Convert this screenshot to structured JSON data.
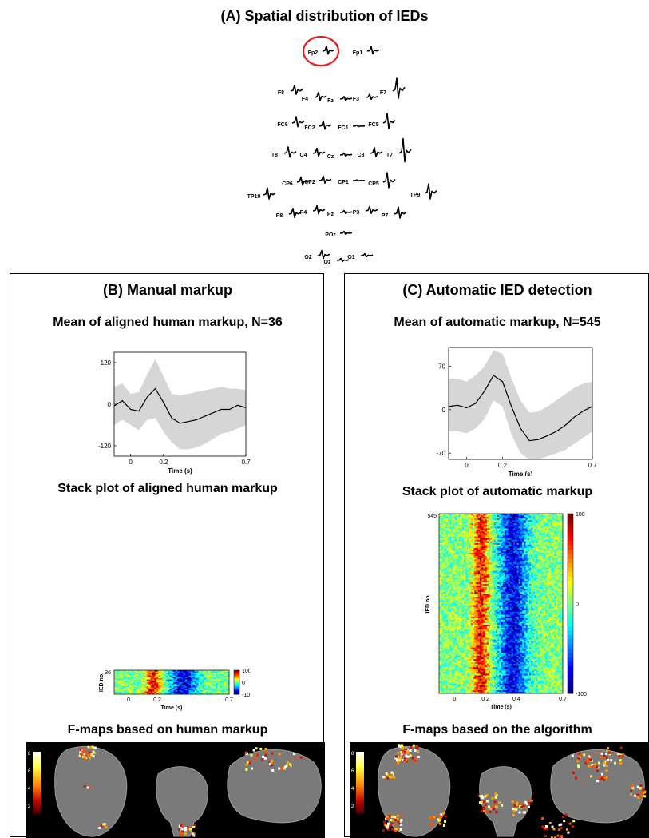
{
  "panel_a": {
    "title": "(A) Spatial distribution of IEDs",
    "channels": [
      {
        "label": "Fp2",
        "highlight": true,
        "amp": 0.8
      },
      {
        "label": "Fp1",
        "amp": 0.7
      },
      {
        "label": "F8",
        "amp": 0.9
      },
      {
        "label": "F4",
        "amp": 0.8
      },
      {
        "label": "Fz",
        "amp": 0.4
      },
      {
        "label": "F3",
        "amp": 0.5
      },
      {
        "label": "F7",
        "amp": 2.0
      },
      {
        "label": "FC6",
        "amp": 1.0
      },
      {
        "label": "FC2",
        "amp": 0.8
      },
      {
        "label": "FC1",
        "amp": 0.15
      },
      {
        "label": "FC5",
        "amp": 1.5
      },
      {
        "label": "T8",
        "amp": 1.0
      },
      {
        "label": "C4",
        "amp": 0.8
      },
      {
        "label": "Cz",
        "amp": 0.3
      },
      {
        "label": "C3",
        "amp": 0.9
      },
      {
        "label": "T7",
        "amp": 2.3
      },
      {
        "label": "CP6",
        "amp": 0.8
      },
      {
        "label": "CP2",
        "amp": 0.7
      },
      {
        "label": "CP1",
        "amp": 0.1
      },
      {
        "label": "CP5",
        "amp": 1.5
      },
      {
        "label": "TP10",
        "amp": 1.1
      },
      {
        "label": "TP9",
        "amp": 1.5
      },
      {
        "label": "P8",
        "amp": 0.9
      },
      {
        "label": "P4",
        "amp": 0.8
      },
      {
        "label": "Pz",
        "amp": 0.3
      },
      {
        "label": "P3",
        "amp": 0.7
      },
      {
        "label": "P7",
        "amp": 1.1
      },
      {
        "label": "POz",
        "amp": 0.3
      },
      {
        "label": "O2",
        "amp": 0.8
      },
      {
        "label": "Oz",
        "amp": 0.3
      },
      {
        "label": "O1",
        "amp": 0.3
      }
    ]
  },
  "panel_b": {
    "title": "(B) Manual markup",
    "mean_title": "Mean of aligned human markup, N=36",
    "stack_title": "Stack plot of aligned human markup",
    "fmap_title": "F-maps based on human markup",
    "colorbar_ticks": [
      "8",
      "6",
      "4",
      "2"
    ]
  },
  "panel_c": {
    "title": "(C) Automatic IED detection",
    "mean_title": "Mean of automatic markup, N=545",
    "stack_title": "Stack plot of automatic markup",
    "fmap_title": "F-maps based on the algorithm",
    "colorbar_ticks": [
      "8",
      "6",
      "4",
      "2"
    ]
  },
  "chart_data": [
    {
      "type": "area",
      "title": "Mean of aligned human markup, N=36",
      "xlabel": "Time (s)",
      "ylabel": "",
      "xlim": [
        -0.1,
        0.7
      ],
      "ylim": [
        -150,
        150
      ],
      "x_ticks": [
        0,
        0.2,
        0.7
      ],
      "x_tick_labels": [
        "0",
        "0.2",
        "0.7"
      ],
      "y_ticks": [
        120,
        0,
        -120
      ],
      "y_tick_labels": [
        "120",
        "0",
        "-120"
      ],
      "x": [
        -0.1,
        -0.05,
        0.0,
        0.05,
        0.1,
        0.15,
        0.2,
        0.25,
        0.3,
        0.35,
        0.4,
        0.45,
        0.5,
        0.55,
        0.6,
        0.65,
        0.7
      ],
      "mean": [
        -5,
        10,
        -15,
        -20,
        20,
        45,
        5,
        -40,
        -55,
        -50,
        -45,
        -35,
        -25,
        -15,
        -15,
        -3,
        -10
      ],
      "upper": [
        50,
        60,
        30,
        35,
        85,
        130,
        80,
        30,
        25,
        30,
        35,
        40,
        45,
        50,
        45,
        45,
        40
      ],
      "lower": [
        -60,
        -45,
        -60,
        -75,
        -45,
        -40,
        -80,
        -110,
        -130,
        -130,
        -125,
        -115,
        -100,
        -85,
        -80,
        -70,
        -60
      ]
    },
    {
      "type": "heatmap",
      "title": "Stack plot of aligned human markup",
      "xlabel": "Time (s)",
      "ylabel": "IED no.",
      "xlim": [
        -0.1,
        0.7
      ],
      "ylim": [
        1,
        36
      ],
      "x_tick_labels": [
        "0",
        "0.2",
        "0.7"
      ],
      "y_tick_labels": [
        "36"
      ],
      "colorbar_ticks": [
        100,
        0,
        -100
      ],
      "colorbar_range": [
        -100,
        100
      ],
      "rows": 36
    },
    {
      "type": "area",
      "title": "Mean of automatic markup, N=545",
      "xlabel": "Time (s)",
      "ylabel": "",
      "xlim": [
        -0.1,
        0.7
      ],
      "ylim": [
        -80,
        100
      ],
      "x_ticks": [
        0,
        0.2,
        0.7
      ],
      "x_tick_labels": [
        "0",
        "0.2",
        "0.7"
      ],
      "y_ticks": [
        70,
        0,
        -70
      ],
      "y_tick_labels": [
        "70",
        "0",
        "-70"
      ],
      "x": [
        -0.1,
        -0.05,
        0.0,
        0.05,
        0.1,
        0.15,
        0.2,
        0.25,
        0.3,
        0.35,
        0.4,
        0.45,
        0.5,
        0.55,
        0.6,
        0.65,
        0.7
      ],
      "mean": [
        5,
        7,
        3,
        10,
        30,
        55,
        45,
        5,
        -30,
        -50,
        -48,
        -42,
        -35,
        -25,
        -12,
        -2,
        5
      ],
      "upper": [
        50,
        50,
        45,
        55,
        70,
        95,
        90,
        50,
        15,
        -5,
        -3,
        5,
        15,
        25,
        35,
        42,
        45
      ],
      "lower": [
        -35,
        -35,
        -38,
        -30,
        -15,
        15,
        5,
        -40,
        -70,
        -80,
        -80,
        -75,
        -70,
        -65,
        -55,
        -45,
        -35
      ]
    },
    {
      "type": "heatmap",
      "title": "Stack plot of automatic markup",
      "xlabel": "Time (s)",
      "ylabel": "IED no.",
      "xlim": [
        -0.1,
        0.7
      ],
      "ylim": [
        1,
        545
      ],
      "x_tick_labels": [
        "0",
        "0.2",
        "0.4",
        "0.7"
      ],
      "y_tick_labels": [
        "545"
      ],
      "colorbar_ticks": [
        100,
        0,
        -100
      ],
      "colorbar_range": [
        -100,
        100
      ],
      "rows": 545
    }
  ]
}
